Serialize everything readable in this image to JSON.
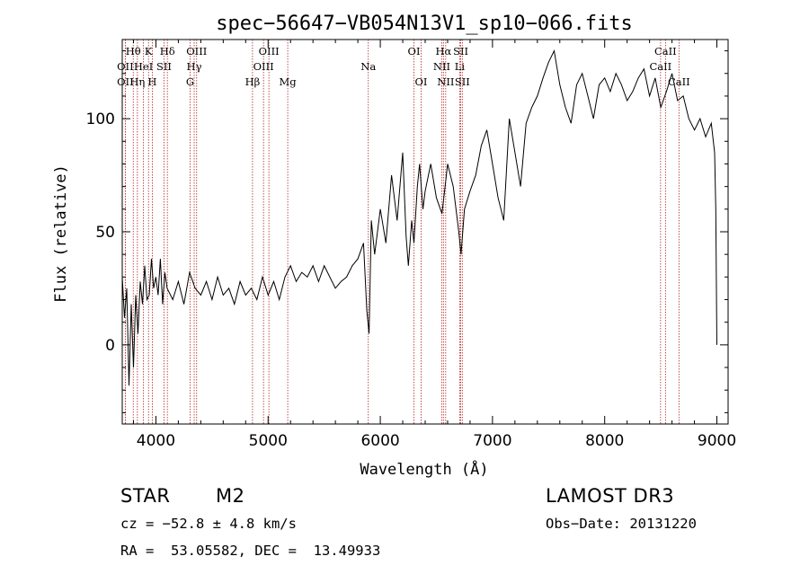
{
  "chart_data": {
    "type": "line",
    "title": "spec−56647−VB054N13V1_sp10−066.fits",
    "xlabel": "Wavelength (Å)",
    "ylabel": "Flux (relative)",
    "xlim": [
      3700,
      9100
    ],
    "ylim": [
      -35,
      135
    ],
    "xticks": [
      4000,
      5000,
      6000,
      7000,
      8000,
      9000
    ],
    "yticks": [
      0,
      50,
      100
    ],
    "series": [
      {
        "name": "spectrum",
        "x": [
          3700,
          3720,
          3740,
          3760,
          3780,
          3800,
          3820,
          3840,
          3860,
          3880,
          3900,
          3920,
          3940,
          3960,
          3980,
          4000,
          4020,
          4040,
          4060,
          4080,
          4100,
          4150,
          4200,
          4250,
          4300,
          4350,
          4400,
          4450,
          4500,
          4550,
          4600,
          4650,
          4700,
          4750,
          4800,
          4850,
          4900,
          4950,
          5000,
          5050,
          5100,
          5150,
          5200,
          5250,
          5300,
          5350,
          5400,
          5450,
          5500,
          5550,
          5600,
          5650,
          5700,
          5750,
          5800,
          5850,
          5880,
          5900,
          5920,
          5950,
          6000,
          6050,
          6100,
          6150,
          6200,
          6230,
          6250,
          6280,
          6300,
          6330,
          6350,
          6380,
          6400,
          6450,
          6500,
          6550,
          6600,
          6650,
          6700,
          6720,
          6750,
          6800,
          6850,
          6900,
          6950,
          7000,
          7050,
          7100,
          7150,
          7200,
          7250,
          7300,
          7350,
          7400,
          7450,
          7500,
          7550,
          7600,
          7650,
          7700,
          7750,
          7800,
          7850,
          7900,
          7950,
          8000,
          8050,
          8100,
          8150,
          8200,
          8250,
          8300,
          8350,
          8400,
          8450,
          8500,
          8550,
          8600,
          8650,
          8700,
          8750,
          8800,
          8850,
          8900,
          8950,
          8980,
          8990,
          9000
        ],
        "values": [
          30,
          12,
          25,
          -18,
          18,
          -10,
          22,
          5,
          28,
          18,
          35,
          20,
          22,
          38,
          25,
          30,
          22,
          38,
          18,
          32,
          25,
          20,
          28,
          18,
          32,
          25,
          22,
          28,
          20,
          30,
          22,
          25,
          18,
          28,
          22,
          25,
          20,
          30,
          22,
          28,
          20,
          30,
          35,
          28,
          32,
          30,
          35,
          28,
          35,
          30,
          25,
          28,
          30,
          35,
          38,
          45,
          15,
          5,
          55,
          40,
          60,
          45,
          75,
          55,
          85,
          48,
          35,
          55,
          45,
          70,
          80,
          60,
          68,
          80,
          65,
          58,
          80,
          70,
          50,
          40,
          60,
          68,
          75,
          88,
          95,
          80,
          65,
          55,
          100,
          85,
          70,
          98,
          105,
          110,
          118,
          125,
          130,
          115,
          105,
          98,
          115,
          120,
          110,
          100,
          115,
          118,
          112,
          120,
          115,
          108,
          112,
          118,
          122,
          110,
          118,
          105,
          112,
          120,
          108,
          110,
          100,
          95,
          100,
          92,
          98,
          85,
          60,
          0
        ]
      }
    ],
    "lines": [
      {
        "name": "OII",
        "wavelength": 3727,
        "row": 2
      },
      {
        "name": "OII",
        "wavelength": 3727,
        "row": 3
      },
      {
        "name": "Hθ",
        "wavelength": 3798,
        "row": 1
      },
      {
        "name": "Hη",
        "wavelength": 3835,
        "row": 3
      },
      {
        "name": "HeI",
        "wavelength": 3889,
        "row": 2
      },
      {
        "name": "K",
        "wavelength": 3934,
        "row": 1
      },
      {
        "name": "H",
        "wavelength": 3968,
        "row": 3
      },
      {
        "name": "SII",
        "wavelength": 4072,
        "row": 2
      },
      {
        "name": "Hδ",
        "wavelength": 4102,
        "row": 1
      },
      {
        "name": "G",
        "wavelength": 4305,
        "row": 3
      },
      {
        "name": "Hγ",
        "wavelength": 4341,
        "row": 2
      },
      {
        "name": "OIII",
        "wavelength": 4363,
        "row": 1
      },
      {
        "name": "Hβ",
        "wavelength": 4861,
        "row": 3
      },
      {
        "name": "OIII",
        "wavelength": 4959,
        "row": 2
      },
      {
        "name": "OIII",
        "wavelength": 5007,
        "row": 1
      },
      {
        "name": "Mg",
        "wavelength": 5175,
        "row": 3
      },
      {
        "name": "Na",
        "wavelength": 5893,
        "row": 2
      },
      {
        "name": "OI",
        "wavelength": 6300,
        "row": 1
      },
      {
        "name": "OI",
        "wavelength": 6364,
        "row": 3
      },
      {
        "name": "NII",
        "wavelength": 6548,
        "row": 2
      },
      {
        "name": "Hα",
        "wavelength": 6563,
        "row": 1
      },
      {
        "name": "NII",
        "wavelength": 6583,
        "row": 3
      },
      {
        "name": "Li",
        "wavelength": 6708,
        "row": 2
      },
      {
        "name": "SII",
        "wavelength": 6717,
        "row": 1
      },
      {
        "name": "SII",
        "wavelength": 6731,
        "row": 3
      },
      {
        "name": "CaII",
        "wavelength": 8498,
        "row": 2
      },
      {
        "name": "CaII",
        "wavelength": 8542,
        "row": 1
      },
      {
        "name": "CaII",
        "wavelength": 8662,
        "row": 3
      }
    ],
    "grid": false,
    "line_color": "#000000",
    "marker_color": "#b22222"
  },
  "footer": {
    "object_class": "STAR",
    "subclass": "M2",
    "velocity": "cz = −52.8 ± 4.8 km/s",
    "coords": "RA =  53.05582, DEC =  13.49933",
    "survey": "LAMOST DR3",
    "obs_date": "Obs−Date: 20131220"
  }
}
